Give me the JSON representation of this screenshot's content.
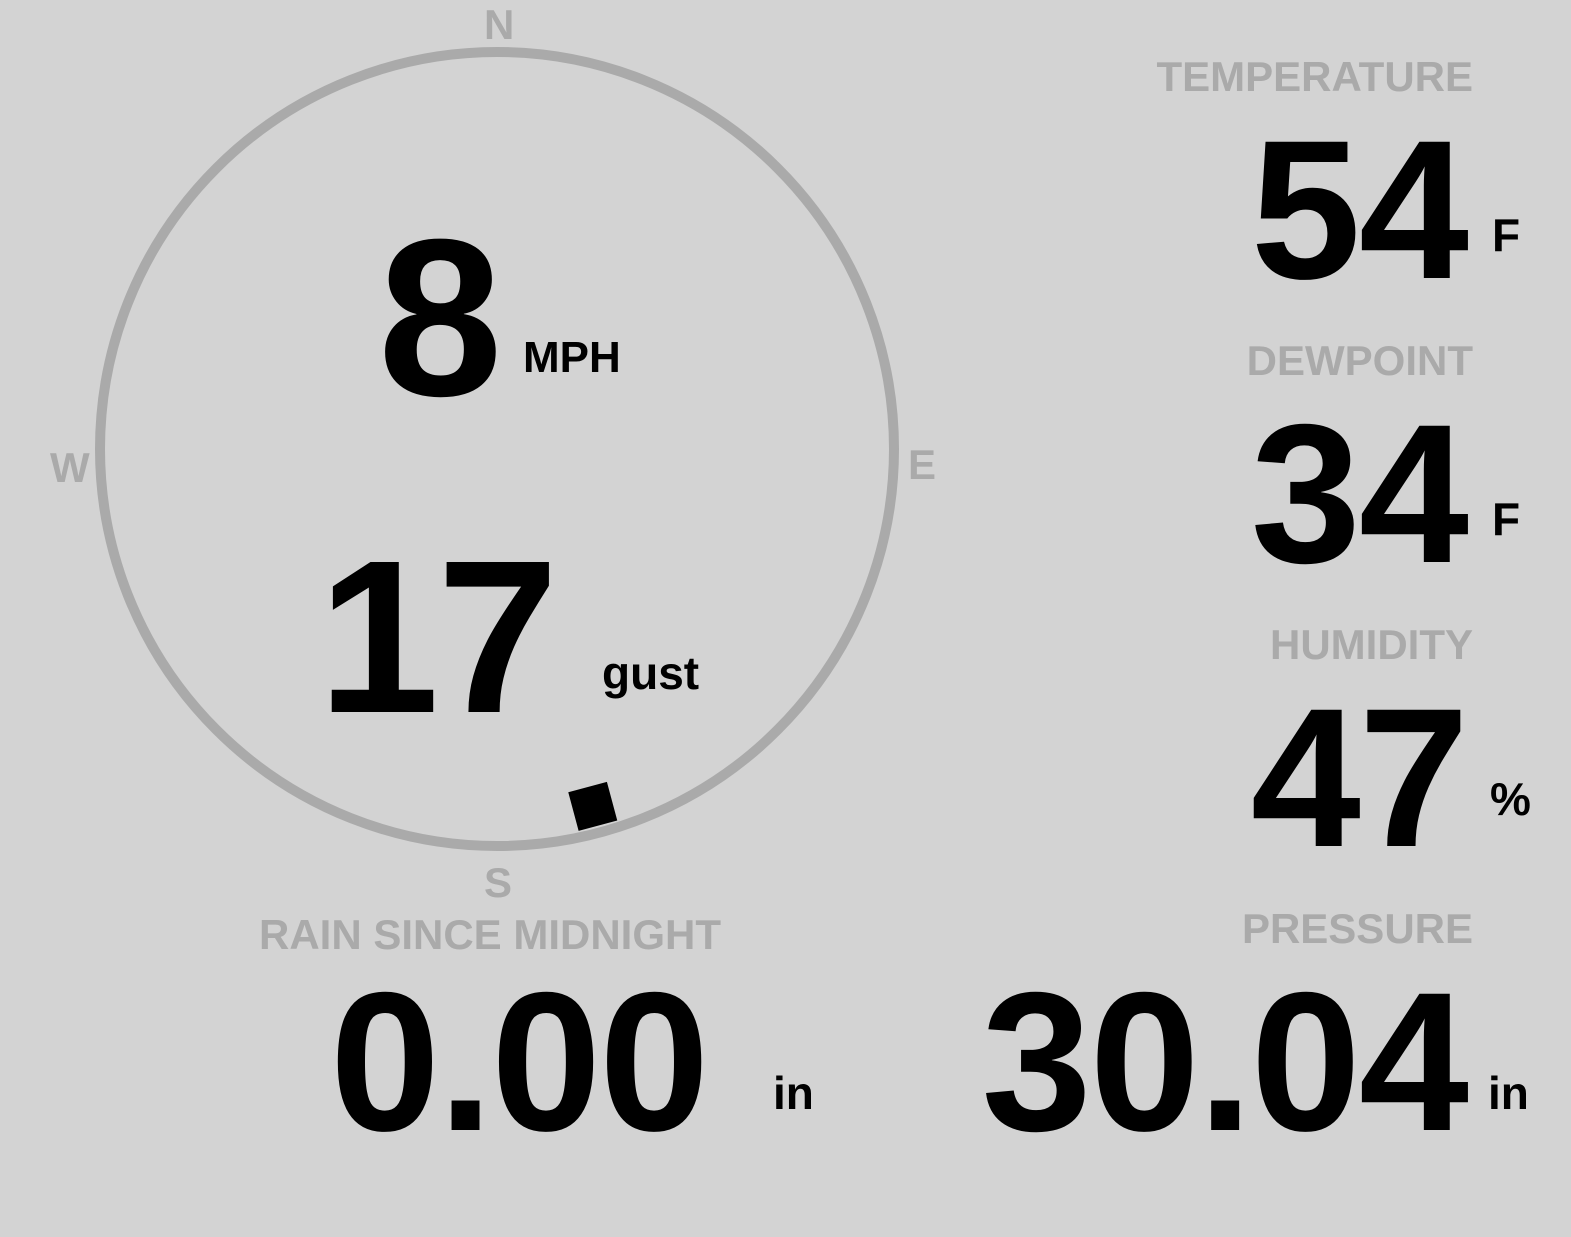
{
  "wind": {
    "speed": "8",
    "speed_unit": "MPH",
    "gust": "17",
    "gust_label": "gust",
    "direction_deg": 165,
    "compass": {
      "n": "N",
      "e": "E",
      "s": "S",
      "w": "W"
    }
  },
  "temperature": {
    "label": "TEMPERATURE",
    "value": "54",
    "unit": "F"
  },
  "dewpoint": {
    "label": "DEWPOINT",
    "value": "34",
    "unit": "F"
  },
  "humidity": {
    "label": "HUMIDITY",
    "value": "47",
    "unit": "%"
  },
  "rain": {
    "label": "RAIN SINCE MIDNIGHT",
    "value": "0.00",
    "unit": "in"
  },
  "pressure": {
    "label": "PRESSURE",
    "value": "30.04",
    "unit": "in"
  },
  "colors": {
    "background": "#d3d3d3",
    "label": "#aaaaaa",
    "value": "#000000"
  }
}
